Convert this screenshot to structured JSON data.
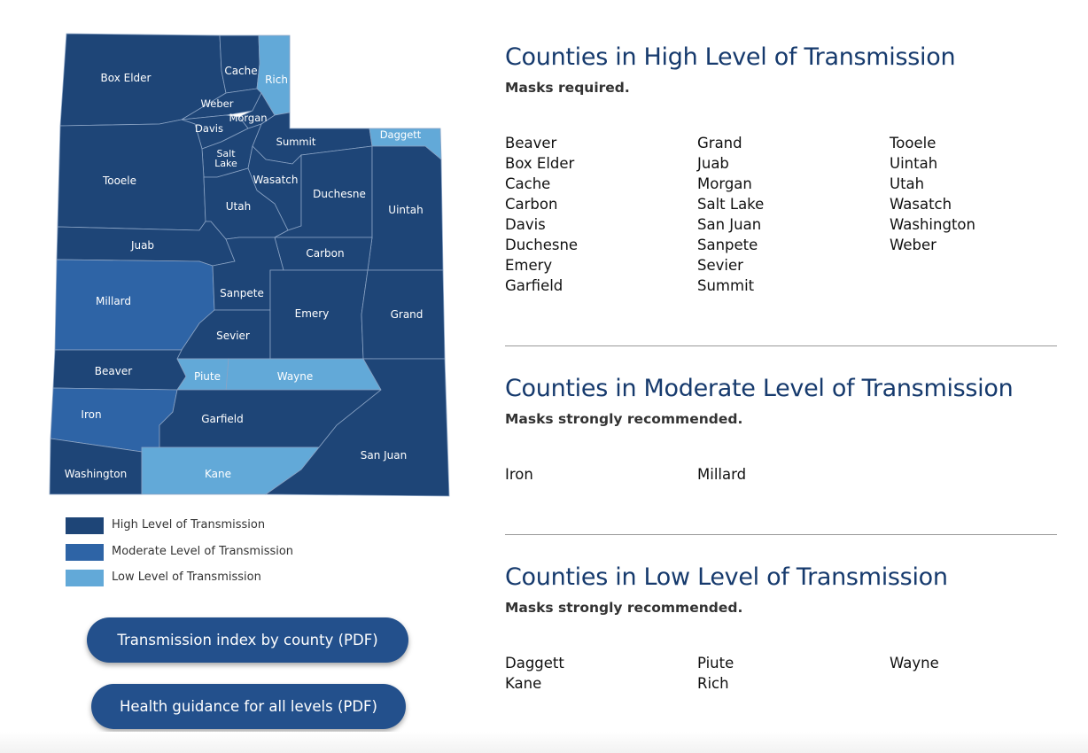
{
  "colors": {
    "high": "#1e4577",
    "moderate": "#2e64a6",
    "low": "#62a9d8",
    "button": "#23508c",
    "heading": "#163a6d"
  },
  "map": {
    "counties": [
      {
        "name": "Box Elder",
        "level": "high"
      },
      {
        "name": "Cache",
        "level": "high"
      },
      {
        "name": "Rich",
        "level": "low"
      },
      {
        "name": "Weber",
        "level": "high"
      },
      {
        "name": "Morgan",
        "level": "high"
      },
      {
        "name": "Davis",
        "level": "high"
      },
      {
        "name": "Summit",
        "level": "high"
      },
      {
        "name": "Salt Lake",
        "level": "high"
      },
      {
        "name": "Daggett",
        "level": "low"
      },
      {
        "name": "Tooele",
        "level": "high"
      },
      {
        "name": "Wasatch",
        "level": "high"
      },
      {
        "name": "Utah",
        "level": "high"
      },
      {
        "name": "Duchesne",
        "level": "high"
      },
      {
        "name": "Uintah",
        "level": "high"
      },
      {
        "name": "Juab",
        "level": "high"
      },
      {
        "name": "Carbon",
        "level": "high"
      },
      {
        "name": "Millard",
        "level": "moderate"
      },
      {
        "name": "Sanpete",
        "level": "high"
      },
      {
        "name": "Sevier",
        "level": "high"
      },
      {
        "name": "Emery",
        "level": "high"
      },
      {
        "name": "Grand",
        "level": "high"
      },
      {
        "name": "Beaver",
        "level": "high"
      },
      {
        "name": "Piute",
        "level": "low"
      },
      {
        "name": "Wayne",
        "level": "low"
      },
      {
        "name": "Iron",
        "level": "moderate"
      },
      {
        "name": "Garfield",
        "level": "high"
      },
      {
        "name": "Washington",
        "level": "high"
      },
      {
        "name": "Kane",
        "level": "low"
      },
      {
        "name": "San Juan",
        "level": "high"
      }
    ]
  },
  "legend": [
    {
      "label": "High Level of Transmission",
      "level": "high"
    },
    {
      "label": "Moderate Level of Transmission",
      "level": "moderate"
    },
    {
      "label": "Low Level of Transmission",
      "level": "low"
    }
  ],
  "buttons": {
    "transmission_index": "Transmission index by county (PDF)",
    "health_guidance": "Health guidance for all levels (PDF)"
  },
  "sections": [
    {
      "title": "Counties in High Level of Transmission",
      "subtitle": "Masks required.",
      "columns": [
        [
          "Beaver",
          "Box Elder",
          "Cache",
          "Carbon",
          "Davis",
          "Duchesne",
          "Emery",
          "Garfield"
        ],
        [
          "Grand",
          "Juab",
          "Morgan",
          "Salt Lake",
          "San Juan",
          "Sanpete",
          "Sevier",
          "Summit"
        ],
        [
          "Tooele",
          "Uintah",
          "Utah",
          "Wasatch",
          "Washington",
          "Weber"
        ]
      ]
    },
    {
      "title": "Counties in Moderate Level of Transmission",
      "subtitle": "Masks strongly recommended.",
      "columns": [
        [
          "Iron"
        ],
        [
          "Millard"
        ],
        []
      ]
    },
    {
      "title": "Counties in Low Level of Transmission",
      "subtitle": "Masks strongly recommended.",
      "columns": [
        [
          "Daggett",
          "Kane"
        ],
        [
          "Piute",
          "Rich"
        ],
        [
          "Wayne"
        ]
      ]
    }
  ]
}
